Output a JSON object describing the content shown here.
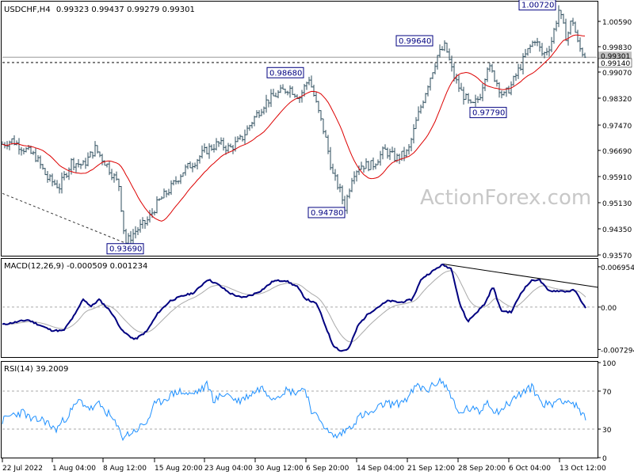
{
  "header": {
    "symbol": "USDCHF,H4",
    "quote": "0.99323 0.99437 0.99279 0.99301"
  },
  "watermark": "ActionForex.com",
  "chart_data": [
    {
      "panel": "price",
      "type": "ohlc",
      "symbol": "USDCHF",
      "timeframe": "H4",
      "ohlc_last": {
        "open": 0.99323,
        "high": 0.99437,
        "low": 0.99279,
        "close": 0.99301
      },
      "y_ticks": [
        "1.00590",
        "0.99830",
        "0.99070",
        "0.98320",
        "0.97470",
        "0.96690",
        "0.95910",
        "0.95130",
        "0.94350",
        "0.93570"
      ],
      "ylim": [
        0.9335,
        1.0095
      ],
      "price_labels": [
        "0.99301",
        "0.99140"
      ],
      "annotations": [
        {
          "text": "0.93690",
          "value": 0.9369
        },
        {
          "text": "0.98680",
          "value": 0.9868
        },
        {
          "text": "0.94780",
          "value": 0.9478
        },
        {
          "text": "0.99640",
          "value": 0.9964
        },
        {
          "text": "0.97790",
          "value": 0.9779
        },
        {
          "text": "1.00720",
          "value": 1.0072
        }
      ],
      "horizontal_levels": [
        0.99301,
        0.9914
      ],
      "moving_average_color": "#dd0000",
      "bar_color": "#2e4e5e",
      "path": [
        {
          "x": 0,
          "y": 0.9665
        },
        {
          "x": 15,
          "y": 0.968
        },
        {
          "x": 30,
          "y": 0.9655
        },
        {
          "x": 45,
          "y": 0.963
        },
        {
          "x": 60,
          "y": 0.9565
        },
        {
          "x": 75,
          "y": 0.954
        },
        {
          "x": 90,
          "y": 0.9615
        },
        {
          "x": 105,
          "y": 0.9605
        },
        {
          "x": 120,
          "y": 0.9655
        },
        {
          "x": 135,
          "y": 0.9605
        },
        {
          "x": 150,
          "y": 0.9545
        },
        {
          "x": 158,
          "y": 0.9369
        },
        {
          "x": 170,
          "y": 0.9405
        },
        {
          "x": 185,
          "y": 0.9435
        },
        {
          "x": 200,
          "y": 0.9495
        },
        {
          "x": 215,
          "y": 0.9535
        },
        {
          "x": 230,
          "y": 0.9585
        },
        {
          "x": 245,
          "y": 0.9615
        },
        {
          "x": 260,
          "y": 0.965
        },
        {
          "x": 275,
          "y": 0.967
        },
        {
          "x": 290,
          "y": 0.9655
        },
        {
          "x": 305,
          "y": 0.9685
        },
        {
          "x": 320,
          "y": 0.9745
        },
        {
          "x": 335,
          "y": 0.9795
        },
        {
          "x": 350,
          "y": 0.982
        },
        {
          "x": 365,
          "y": 0.9838
        },
        {
          "x": 378,
          "y": 0.981
        },
        {
          "x": 390,
          "y": 0.9868
        },
        {
          "x": 400,
          "y": 0.978
        },
        {
          "x": 410,
          "y": 0.9695
        },
        {
          "x": 420,
          "y": 0.9575
        },
        {
          "x": 428,
          "y": 0.9535
        },
        {
          "x": 435,
          "y": 0.9478
        },
        {
          "x": 445,
          "y": 0.958
        },
        {
          "x": 455,
          "y": 0.9605
        },
        {
          "x": 470,
          "y": 0.9605
        },
        {
          "x": 485,
          "y": 0.965
        },
        {
          "x": 500,
          "y": 0.9625
        },
        {
          "x": 515,
          "y": 0.9645
        },
        {
          "x": 525,
          "y": 0.9735
        },
        {
          "x": 540,
          "y": 0.985
        },
        {
          "x": 552,
          "y": 0.9935
        },
        {
          "x": 562,
          "y": 0.9964
        },
        {
          "x": 572,
          "y": 0.9875
        },
        {
          "x": 582,
          "y": 0.9825
        },
        {
          "x": 595,
          "y": 0.9779
        },
        {
          "x": 605,
          "y": 0.981
        },
        {
          "x": 615,
          "y": 0.9905
        },
        {
          "x": 625,
          "y": 0.9865
        },
        {
          "x": 635,
          "y": 0.981
        },
        {
          "x": 645,
          "y": 0.9845
        },
        {
          "x": 655,
          "y": 0.9895
        },
        {
          "x": 665,
          "y": 0.9945
        },
        {
          "x": 675,
          "y": 0.9985
        },
        {
          "x": 685,
          "y": 0.9935
        },
        {
          "x": 695,
          "y": 0.997
        },
        {
          "x": 705,
          "y": 1.0072
        },
        {
          "x": 715,
          "y": 0.9985
        },
        {
          "x": 722,
          "y": 1.005
        },
        {
          "x": 730,
          "y": 0.996
        },
        {
          "x": 740,
          "y": 0.993
        }
      ]
    },
    {
      "panel": "macd",
      "type": "line",
      "title": "MACD(12,26,9) -0.000509 0.001234",
      "y_ticks": [
        "0.006954",
        "0.00",
        "-0.007294"
      ],
      "ylim": [
        -0.0082,
        0.0079
      ],
      "series": [
        {
          "name": "MACD",
          "color": "#000080"
        },
        {
          "name": "Signal",
          "color": "#aaaaaa"
        }
      ],
      "values_macd": [
        {
          "x": 0,
          "y": -0.0031
        },
        {
          "x": 20,
          "y": -0.0026
        },
        {
          "x": 35,
          "y": -0.0022
        },
        {
          "x": 50,
          "y": -0.0031
        },
        {
          "x": 65,
          "y": -0.004
        },
        {
          "x": 80,
          "y": -0.0041
        },
        {
          "x": 95,
          "y": -0.0012
        },
        {
          "x": 105,
          "y": 0.0014
        },
        {
          "x": 115,
          "y": 0.0001
        },
        {
          "x": 125,
          "y": 0.0013
        },
        {
          "x": 140,
          "y": -0.0008
        },
        {
          "x": 155,
          "y": -0.0042
        },
        {
          "x": 170,
          "y": -0.0056
        },
        {
          "x": 185,
          "y": -0.0042
        },
        {
          "x": 200,
          "y": -0.0009
        },
        {
          "x": 215,
          "y": 0.0011
        },
        {
          "x": 230,
          "y": 0.0019
        },
        {
          "x": 245,
          "y": 0.0025
        },
        {
          "x": 262,
          "y": 0.0048
        },
        {
          "x": 275,
          "y": 0.0039
        },
        {
          "x": 290,
          "y": 0.0024
        },
        {
          "x": 305,
          "y": 0.0016
        },
        {
          "x": 318,
          "y": 0.0021
        },
        {
          "x": 330,
          "y": 0.0029
        },
        {
          "x": 345,
          "y": 0.0045
        },
        {
          "x": 360,
          "y": 0.0046
        },
        {
          "x": 375,
          "y": 0.0035
        },
        {
          "x": 385,
          "y": 0.0015
        },
        {
          "x": 400,
          "y": 0.0005
        },
        {
          "x": 410,
          "y": -0.003
        },
        {
          "x": 420,
          "y": -0.0065
        },
        {
          "x": 430,
          "y": -0.0076
        },
        {
          "x": 440,
          "y": -0.0072
        },
        {
          "x": 452,
          "y": -0.0031
        },
        {
          "x": 465,
          "y": -0.0011
        },
        {
          "x": 478,
          "y": 0.0001
        },
        {
          "x": 490,
          "y": 0.0011
        },
        {
          "x": 505,
          "y": 0.0008
        },
        {
          "x": 520,
          "y": 0.0013
        },
        {
          "x": 532,
          "y": 0.0049
        },
        {
          "x": 545,
          "y": 0.0061
        },
        {
          "x": 558,
          "y": 0.0073
        },
        {
          "x": 570,
          "y": 0.0066
        },
        {
          "x": 580,
          "y": 0.0006
        },
        {
          "x": 590,
          "y": -0.0025
        },
        {
          "x": 600,
          "y": -0.0011
        },
        {
          "x": 612,
          "y": 0.0006
        },
        {
          "x": 622,
          "y": 0.0036
        },
        {
          "x": 632,
          "y": -0.0006
        },
        {
          "x": 645,
          "y": -0.0009
        },
        {
          "x": 658,
          "y": 0.0026
        },
        {
          "x": 670,
          "y": 0.0045
        },
        {
          "x": 680,
          "y": 0.0048
        },
        {
          "x": 692,
          "y": 0.0028
        },
        {
          "x": 705,
          "y": 0.0028
        },
        {
          "x": 715,
          "y": 0.0027
        },
        {
          "x": 725,
          "y": 0.0029
        },
        {
          "x": 733,
          "y": 0.0012
        },
        {
          "x": 740,
          "y": -0.0005
        }
      ],
      "trendline": [
        {
          "x": 560,
          "y": 0.0074
        },
        {
          "x": 755,
          "y": 0.0034
        }
      ]
    },
    {
      "panel": "rsi",
      "type": "line",
      "title": "RSI(14) 39.2009",
      "y_ticks": [
        "100",
        "70",
        "30",
        "0"
      ],
      "ylim": [
        0,
        100
      ],
      "levels": [
        70,
        30
      ],
      "series": [
        {
          "name": "RSI(14)",
          "color": "#1e90ff"
        }
      ],
      "values": [
        {
          "x": 0,
          "y": 37
        },
        {
          "x": 15,
          "y": 45
        },
        {
          "x": 30,
          "y": 48
        },
        {
          "x": 40,
          "y": 39
        },
        {
          "x": 55,
          "y": 40
        },
        {
          "x": 70,
          "y": 29
        },
        {
          "x": 85,
          "y": 44
        },
        {
          "x": 100,
          "y": 60
        },
        {
          "x": 115,
          "y": 51
        },
        {
          "x": 125,
          "y": 56
        },
        {
          "x": 140,
          "y": 43
        },
        {
          "x": 155,
          "y": 22
        },
        {
          "x": 170,
          "y": 28
        },
        {
          "x": 185,
          "y": 37
        },
        {
          "x": 195,
          "y": 55
        },
        {
          "x": 210,
          "y": 63
        },
        {
          "x": 225,
          "y": 70
        },
        {
          "x": 240,
          "y": 66
        },
        {
          "x": 255,
          "y": 72
        },
        {
          "x": 262,
          "y": 77
        },
        {
          "x": 270,
          "y": 60
        },
        {
          "x": 285,
          "y": 68
        },
        {
          "x": 300,
          "y": 59
        },
        {
          "x": 315,
          "y": 66
        },
        {
          "x": 330,
          "y": 74
        },
        {
          "x": 345,
          "y": 63
        },
        {
          "x": 360,
          "y": 71
        },
        {
          "x": 372,
          "y": 69
        },
        {
          "x": 385,
          "y": 73
        },
        {
          "x": 395,
          "y": 45
        },
        {
          "x": 405,
          "y": 40
        },
        {
          "x": 415,
          "y": 25
        },
        {
          "x": 425,
          "y": 22
        },
        {
          "x": 440,
          "y": 31
        },
        {
          "x": 455,
          "y": 44
        },
        {
          "x": 470,
          "y": 47
        },
        {
          "x": 485,
          "y": 57
        },
        {
          "x": 500,
          "y": 56
        },
        {
          "x": 515,
          "y": 63
        },
        {
          "x": 525,
          "y": 75
        },
        {
          "x": 540,
          "y": 71
        },
        {
          "x": 555,
          "y": 82
        },
        {
          "x": 568,
          "y": 69
        },
        {
          "x": 578,
          "y": 45
        },
        {
          "x": 590,
          "y": 52
        },
        {
          "x": 605,
          "y": 48
        },
        {
          "x": 615,
          "y": 60
        },
        {
          "x": 625,
          "y": 48
        },
        {
          "x": 635,
          "y": 52
        },
        {
          "x": 648,
          "y": 62
        },
        {
          "x": 660,
          "y": 69
        },
        {
          "x": 672,
          "y": 74
        },
        {
          "x": 683,
          "y": 58
        },
        {
          "x": 695,
          "y": 55
        },
        {
          "x": 705,
          "y": 62
        },
        {
          "x": 715,
          "y": 60
        },
        {
          "x": 725,
          "y": 56
        },
        {
          "x": 733,
          "y": 46
        },
        {
          "x": 740,
          "y": 39
        }
      ]
    }
  ],
  "time_axis": {
    "labels": [
      "22 Jul 2022",
      "1 Aug 04:00",
      "8 Aug 12:00",
      "15 Aug 20:00",
      "23 Aug 04:00",
      "30 Aug 12:00",
      "6 Sep 20:00",
      "14 Sep 04:00",
      "21 Sep 12:00",
      "28 Sep 20:00",
      "6 Oct 04:00",
      "13 Oct 12:00"
    ]
  }
}
